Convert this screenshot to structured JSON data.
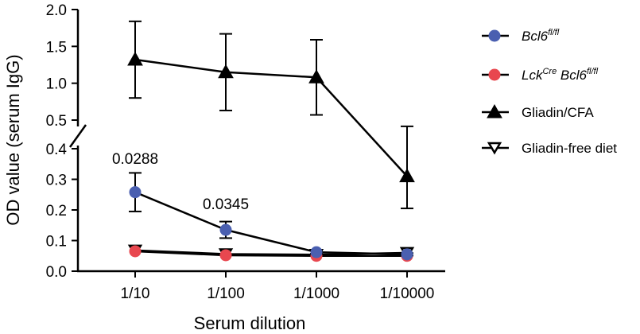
{
  "chart_data": {
    "type": "line",
    "title": "",
    "xlabel": "Serum dilution",
    "ylabel": "OD value (serum IgG)",
    "categories": [
      "1/10",
      "1/100",
      "1/1000",
      "1/10000"
    ],
    "y_axis": {
      "broken": true,
      "lower_range": [
        0,
        0.4
      ],
      "upper_range": [
        0.5,
        2.0
      ],
      "lower_ticks": [
        "0.0",
        "0.1",
        "0.2",
        "0.3",
        "0.4"
      ],
      "upper_ticks": [
        "0.5",
        "1.0",
        "1.5",
        "2.0"
      ]
    },
    "series": [
      {
        "name_main": "Bcl6",
        "name_sup": "fl/fl",
        "marker": "circle",
        "color": "#4a5fb0",
        "values": [
          0.258,
          0.135,
          0.062,
          0.055
        ],
        "error": [
          0.063,
          0.027,
          0.005,
          0.004
        ]
      },
      {
        "name_main": "Lck",
        "name_sup": "Cre",
        "name_main2": "Bcl6",
        "name_sup2": "fl/fl",
        "marker": "circle",
        "color": "#e8474f",
        "values": [
          0.065,
          0.052,
          0.05,
          0.05
        ],
        "error": [
          0.0,
          0.0,
          0.0,
          0.0
        ]
      },
      {
        "name": "Gliadin/CFA",
        "marker": "triangle-up",
        "color": "#000000",
        "values": [
          1.32,
          1.15,
          1.08,
          0.31
        ],
        "error": [
          0.52,
          0.52,
          0.51,
          0.105
        ]
      },
      {
        "name": "Gliadin-free diet",
        "marker": "triangle-down-open",
        "color": "#000000",
        "values": [
          0.068,
          0.056,
          0.054,
          0.06
        ],
        "error": [
          0.0,
          0.0,
          0.0,
          0.0
        ]
      }
    ],
    "annotations": [
      {
        "text": "0.0288",
        "category": "1/10"
      },
      {
        "text": "0.0345",
        "category": "1/100"
      }
    ],
    "legend": "right",
    "grid": false
  }
}
